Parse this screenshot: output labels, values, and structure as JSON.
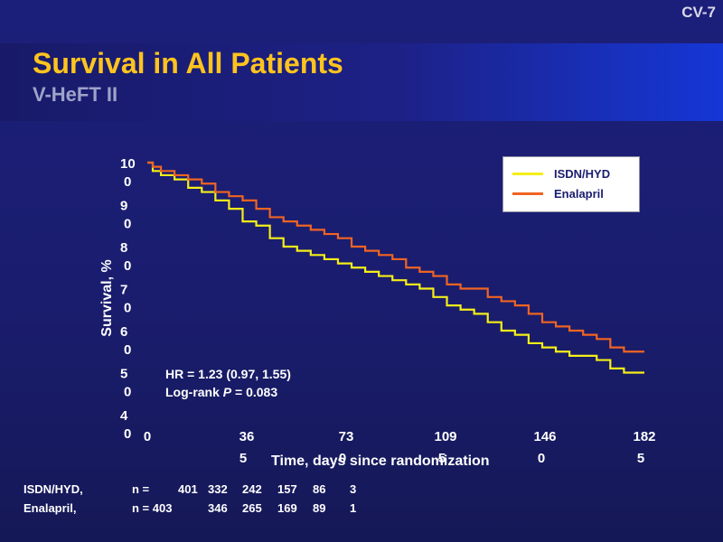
{
  "slide_number": "CV-7",
  "title": "Survival in All Patients",
  "subtitle": "V-HeFT II",
  "side_note": "",
  "chart_data": {
    "type": "line",
    "title": "Survival in All Patients",
    "xlabel": "Time, days since randomization",
    "ylabel": "Survival, %",
    "xlim": [
      0,
      1825
    ],
    "ylim": [
      40,
      100
    ],
    "x_ticks": [
      0,
      365,
      730,
      1095,
      1460,
      1825
    ],
    "x_tick_labels": [
      {
        "line1": "0",
        "line2": ""
      },
      {
        "line1": "36",
        "line2": "5"
      },
      {
        "line1": "73",
        "line2": "0"
      },
      {
        "line1": "109",
        "line2": "5"
      },
      {
        "line1": "146",
        "line2": "0"
      },
      {
        "line1": "182",
        "line2": "5"
      }
    ],
    "y_ticks": [
      40,
      50,
      60,
      70,
      80,
      90,
      100
    ],
    "y_tick_labels": [
      {
        "line1": "4",
        "line2": "0"
      },
      {
        "line1": "5",
        "line2": "0"
      },
      {
        "line1": "6",
        "line2": "0"
      },
      {
        "line1": "7",
        "line2": "0"
      },
      {
        "line1": "8",
        "line2": "0"
      },
      {
        "line1": "9",
        "line2": "0"
      },
      {
        "line1": "10",
        "line2": "0"
      }
    ],
    "legend_position": "top-right",
    "series": [
      {
        "name": "ISDN/HYD",
        "color": "#f5ee18",
        "x": [
          0,
          20,
          50,
          100,
          150,
          200,
          250,
          300,
          350,
          400,
          450,
          500,
          550,
          600,
          650,
          700,
          750,
          800,
          850,
          900,
          950,
          1000,
          1050,
          1100,
          1150,
          1200,
          1250,
          1300,
          1350,
          1400,
          1450,
          1500,
          1550,
          1600,
          1650,
          1700,
          1750,
          1825
        ],
        "values": [
          100,
          98,
          97,
          96,
          94,
          93,
          91,
          89,
          86,
          85,
          82,
          80,
          79,
          78,
          77,
          76,
          75,
          74,
          73,
          72,
          71,
          70,
          68,
          66,
          65,
          64,
          62,
          60,
          59,
          57,
          56,
          55,
          54,
          54,
          53,
          51,
          50,
          50
        ]
      },
      {
        "name": "Enalapril",
        "color": "#f06422",
        "x": [
          0,
          20,
          50,
          100,
          150,
          200,
          250,
          300,
          350,
          400,
          450,
          500,
          550,
          600,
          650,
          700,
          750,
          800,
          850,
          900,
          950,
          1000,
          1050,
          1100,
          1150,
          1200,
          1250,
          1300,
          1350,
          1400,
          1450,
          1500,
          1550,
          1600,
          1650,
          1700,
          1750,
          1825
        ],
        "values": [
          100,
          99,
          98,
          97,
          96,
          95,
          93,
          92,
          91,
          89,
          87,
          86,
          85,
          84,
          83,
          82,
          80,
          79,
          78,
          77,
          75,
          74,
          73,
          71,
          70,
          70,
          68,
          67,
          66,
          64,
          62,
          61,
          60,
          59,
          58,
          56,
          55,
          55
        ]
      }
    ],
    "annotations": {
      "hr_line": "HR = 1.23 (0.97, 1.55)",
      "logrank_prefix": "Log-rank ",
      "logrank_p": "P",
      "logrank_value": " = 0.083"
    },
    "risk_table": {
      "rows": [
        {
          "label": "ISDN/HYD,",
          "n_label": "n =",
          "values": [
            "401",
            "332",
            "242",
            "157",
            "86",
            "3"
          ]
        },
        {
          "label": "Enalapril,",
          "n_label": "n = 403",
          "values": [
            "346",
            "265",
            "169",
            "89",
            "1"
          ]
        }
      ]
    }
  }
}
